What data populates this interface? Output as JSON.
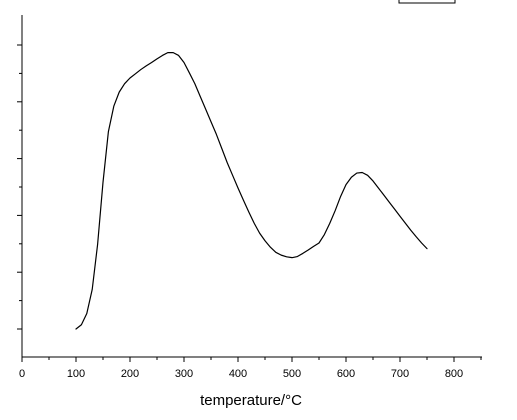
{
  "chart_data": {
    "type": "line",
    "title": "",
    "xlabel": "temperature/°C",
    "ylabel": "",
    "xlim": [
      0,
      850
    ],
    "x_ticks": [
      0,
      100,
      200,
      300,
      400,
      500,
      600,
      700,
      800
    ],
    "x_tick_labels": [
      "0",
      "100",
      "200",
      "300",
      "400",
      "500",
      "600",
      "700",
      "800"
    ],
    "y_axis_tick_labels_shown": false,
    "grid": false,
    "legend": {
      "placement": "top-right",
      "entries": []
    },
    "series": [
      {
        "color": "#000000",
        "x": [
          100,
          110,
          120,
          130,
          140,
          150,
          160,
          170,
          180,
          190,
          200,
          210,
          220,
          230,
          240,
          250,
          260,
          270,
          280,
          290,
          300,
          310,
          320,
          330,
          340,
          350,
          360,
          370,
          380,
          390,
          400,
          410,
          420,
          430,
          440,
          450,
          460,
          470,
          480,
          490,
          500,
          510,
          520,
          530,
          540,
          550,
          560,
          570,
          580,
          590,
          600,
          610,
          620,
          630,
          640,
          650,
          660,
          670,
          680,
          690,
          700,
          710,
          720,
          730,
          740,
          750
        ],
        "y": [
          0.0,
          1.5,
          5.5,
          14,
          30,
          52,
          70,
          79,
          84,
          87,
          89,
          90.5,
          92,
          93.3,
          94.5,
          95.8,
          97,
          98,
          98,
          97,
          94.5,
          90.8,
          87,
          82.5,
          78,
          73.5,
          69,
          64,
          59,
          54.5,
          50,
          45.7,
          41.5,
          37.5,
          34,
          31.3,
          29,
          27.2,
          26.2,
          25.6,
          25.3,
          25.7,
          26.8,
          28,
          29.3,
          30.5,
          33.5,
          37.5,
          42,
          47,
          51.2,
          53.8,
          55.3,
          55.5,
          54.5,
          52.5,
          50,
          47.5,
          45,
          42.5,
          40,
          37.5,
          35,
          32.7,
          30.5,
          28.5
        ]
      }
    ]
  }
}
